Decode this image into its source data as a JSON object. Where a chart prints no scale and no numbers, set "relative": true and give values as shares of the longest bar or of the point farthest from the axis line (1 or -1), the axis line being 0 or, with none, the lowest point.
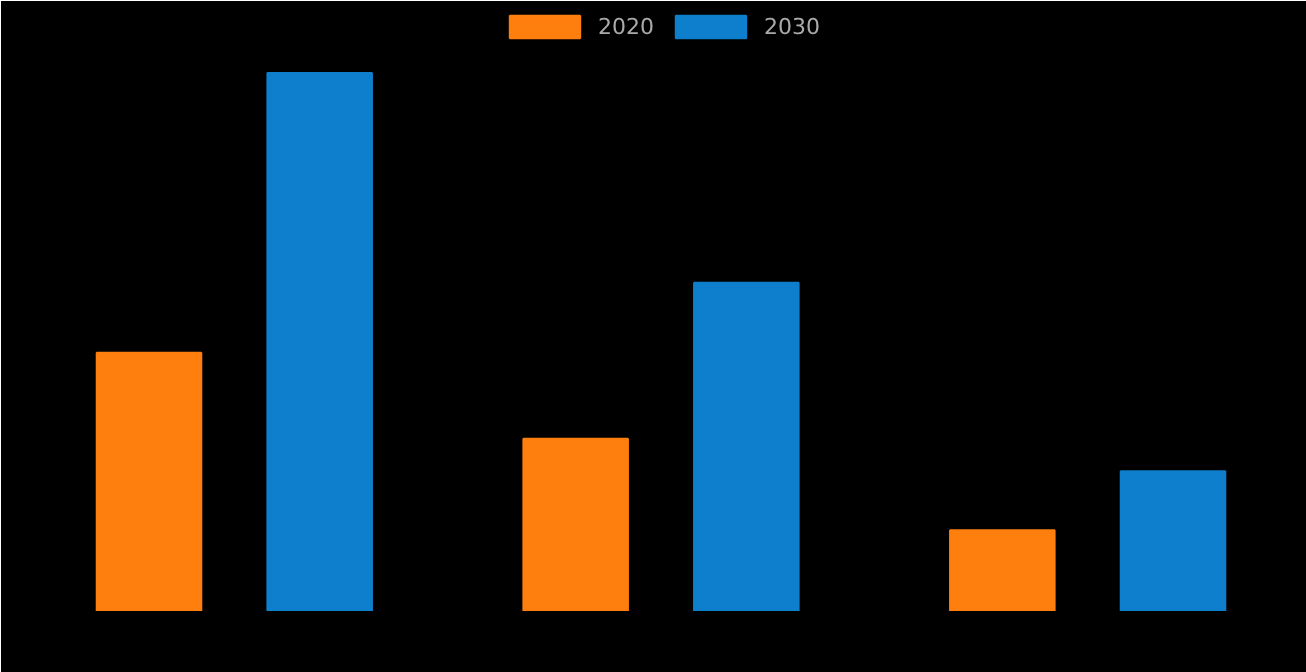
{
  "chart_data": {
    "type": "bar",
    "relative": true,
    "categories": [
      null,
      null,
      null
    ],
    "legend": "top",
    "series": [
      {
        "name": "2020",
        "color": "#ff7f0e",
        "values": [
          0.48,
          0.32,
          0.15
        ]
      },
      {
        "name": "2030",
        "color": "#0e7fcc",
        "values": [
          1,
          0.61,
          0.26
        ]
      }
    ]
  }
}
